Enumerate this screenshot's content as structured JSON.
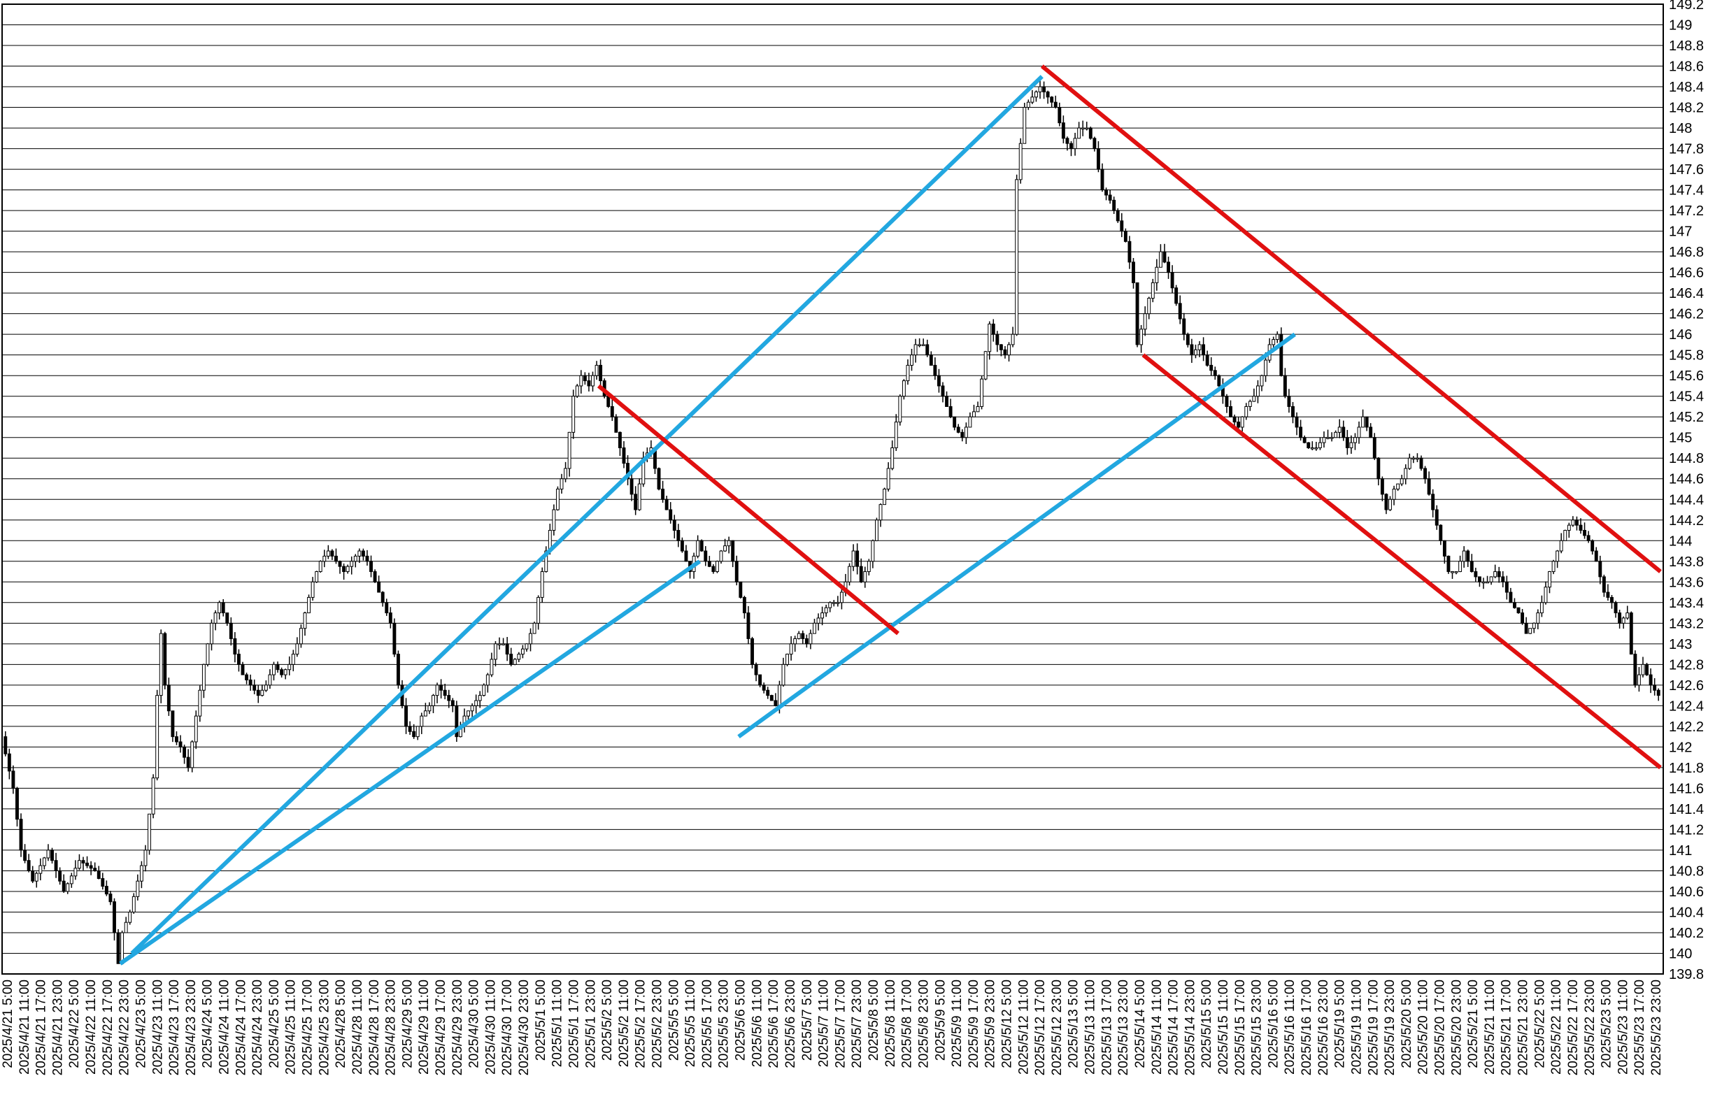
{
  "chart_data": {
    "type": "candlestick",
    "title": "",
    "xlabel": "",
    "ylabel": "",
    "ylim": [
      139.8,
      149.2
    ],
    "y_ticks": [
      139.8,
      140,
      140.2,
      140.4,
      140.6,
      140.8,
      141,
      141.2,
      141.4,
      141.6,
      141.8,
      142,
      142.2,
      142.4,
      142.6,
      142.8,
      143,
      143.2,
      143.4,
      143.6,
      143.8,
      144,
      144.2,
      144.4,
      144.6,
      144.8,
      145,
      145.2,
      145.4,
      145.6,
      145.8,
      146,
      146.2,
      146.4,
      146.6,
      146.8,
      147,
      147.2,
      147.4,
      147.6,
      147.8,
      148,
      148.2,
      148.4,
      148.6,
      148.8,
      149,
      149.2
    ],
    "y_tick_labels": [
      "139.8",
      "140",
      "140.2",
      "140.4",
      "140.6",
      "140.8",
      "141",
      "141.2",
      "141.4",
      "141.6",
      "141.8",
      "142",
      "142.2",
      "142.4",
      "142.6",
      "142.8",
      "143",
      "143.2",
      "143.4",
      "143.6",
      "143.8",
      "144",
      "144.2",
      "144.4",
      "144.6",
      "144.8",
      "145",
      "145.2",
      "145.4",
      "145.6",
      "145.8",
      "146",
      "146.2",
      "146.4",
      "146.6",
      "146.8",
      "147",
      "147.2",
      "147.4",
      "147.6",
      "147.8",
      "148",
      "148.2",
      "148.4",
      "148.6",
      "148.8",
      "149",
      "149.2"
    ],
    "x_tick_labels": [
      "2025/4/21 5:00",
      "2025/4/21 11:00",
      "2025/4/21 17:00",
      "2025/4/21 23:00",
      "2025/4/22 5:00",
      "2025/4/22 11:00",
      "2025/4/22 17:00",
      "2025/4/22 23:00",
      "2025/4/23 5:00",
      "2025/4/23 11:00",
      "2025/4/23 17:00",
      "2025/4/23 23:00",
      "2025/4/24 5:00",
      "2025/4/24 11:00",
      "2025/4/24 17:00",
      "2025/4/24 23:00",
      "2025/4/25 5:00",
      "2025/4/25 11:00",
      "2025/4/25 17:00",
      "2025/4/25 23:00",
      "2025/4/28 5:00",
      "2025/4/28 11:00",
      "2025/4/28 17:00",
      "2025/4/28 23:00",
      "2025/4/29 5:00",
      "2025/4/29 11:00",
      "2025/4/29 17:00",
      "2025/4/29 23:00",
      "2025/4/30 5:00",
      "2025/4/30 11:00",
      "2025/4/30 17:00",
      "2025/4/30 23:00",
      "2025/5/1 5:00",
      "2025/5/1 11:00",
      "2025/5/1 17:00",
      "2025/5/1 23:00",
      "2025/5/2 5:00",
      "2025/5/2 11:00",
      "2025/5/2 17:00",
      "2025/5/2 23:00",
      "2025/5/5 5:00",
      "2025/5/5 11:00",
      "2025/5/5 17:00",
      "2025/5/5 23:00",
      "2025/5/6 5:00",
      "2025/5/6 11:00",
      "2025/5/6 17:00",
      "2025/5/6 23:00",
      "2025/5/7 5:00",
      "2025/5/7 11:00",
      "2025/5/7 17:00",
      "2025/5/7 23:00",
      "2025/5/8 5:00",
      "2025/5/8 11:00",
      "2025/5/8 17:00",
      "2025/5/8 23:00",
      "2025/5/9 5:00",
      "2025/5/9 11:00",
      "2025/5/9 17:00",
      "2025/5/9 23:00",
      "2025/5/12 5:00",
      "2025/5/12 11:00",
      "2025/5/12 17:00",
      "2025/5/12 23:00",
      "2025/5/13 5:00",
      "2025/5/13 11:00",
      "2025/5/13 17:00",
      "2025/5/13 23:00",
      "2025/5/14 5:00",
      "2025/5/14 11:00",
      "2025/5/14 17:00",
      "2025/5/14 23:00",
      "2025/5/15 5:00",
      "2025/5/15 11:00",
      "2025/5/15 17:00",
      "2025/5/15 23:00",
      "2025/5/16 5:00",
      "2025/5/16 11:00",
      "2025/5/16 17:00",
      "2025/5/16 23:00",
      "2025/5/19 5:00",
      "2025/5/19 11:00",
      "2025/5/19 17:00",
      "2025/5/19 23:00",
      "2025/5/20 5:00",
      "2025/5/20 11:00",
      "2025/5/20 17:00",
      "2025/5/20 23:00",
      "2025/5/21 5:00",
      "2025/5/21 11:00",
      "2025/5/21 17:00",
      "2025/5/21 23:00",
      "2025/5/22 5:00",
      "2025/5/22 11:00",
      "2025/5/22 17:00",
      "2025/5/22 23:00",
      "2025/5/23 5:00",
      "2025/5/23 11:00",
      "2025/5/23 17:00",
      "2025/5/23 23:00"
    ],
    "price_path": [
      [
        0,
        142.1
      ],
      [
        3,
        141.6
      ],
      [
        5,
        141.0
      ],
      [
        8,
        140.7
      ],
      [
        12,
        141.0
      ],
      [
        16,
        140.6
      ],
      [
        20,
        140.9
      ],
      [
        24,
        140.8
      ],
      [
        28,
        140.5
      ],
      [
        30,
        139.9
      ],
      [
        31,
        140.2
      ],
      [
        33,
        140.4
      ],
      [
        35,
        140.7
      ],
      [
        37,
        141.0
      ],
      [
        39,
        141.7
      ],
      [
        40,
        142.5
      ],
      [
        41,
        143.1
      ],
      [
        42,
        142.6
      ],
      [
        44,
        142.1
      ],
      [
        46,
        142.0
      ],
      [
        48,
        141.8
      ],
      [
        50,
        142.3
      ],
      [
        52,
        142.8
      ],
      [
        54,
        143.2
      ],
      [
        56,
        143.4
      ],
      [
        58,
        143.2
      ],
      [
        60,
        142.9
      ],
      [
        62,
        142.7
      ],
      [
        64,
        142.6
      ],
      [
        66,
        142.5
      ],
      [
        68,
        142.6
      ],
      [
        70,
        142.8
      ],
      [
        72,
        142.7
      ],
      [
        74,
        142.8
      ],
      [
        76,
        143.0
      ],
      [
        78,
        143.3
      ],
      [
        80,
        143.6
      ],
      [
        82,
        143.8
      ],
      [
        84,
        143.9
      ],
      [
        86,
        143.8
      ],
      [
        88,
        143.7
      ],
      [
        90,
        143.8
      ],
      [
        92,
        143.9
      ],
      [
        94,
        143.8
      ],
      [
        96,
        143.6
      ],
      [
        98,
        143.4
      ],
      [
        100,
        143.2
      ],
      [
        101,
        142.9
      ],
      [
        102,
        142.6
      ],
      [
        104,
        142.2
      ],
      [
        106,
        142.1
      ],
      [
        108,
        142.3
      ],
      [
        110,
        142.4
      ],
      [
        112,
        142.6
      ],
      [
        114,
        142.5
      ],
      [
        116,
        142.4
      ],
      [
        117,
        142.1
      ],
      [
        119,
        142.3
      ],
      [
        121,
        142.4
      ],
      [
        123,
        142.5
      ],
      [
        125,
        142.7
      ],
      [
        127,
        143.0
      ],
      [
        129,
        143.0
      ],
      [
        131,
        142.8
      ],
      [
        133,
        142.9
      ],
      [
        135,
        143.0
      ],
      [
        137,
        143.2
      ],
      [
        139,
        143.7
      ],
      [
        141,
        144.1
      ],
      [
        143,
        144.5
      ],
      [
        145,
        144.7
      ],
      [
        147,
        145.4
      ],
      [
        149,
        145.6
      ],
      [
        151,
        145.5
      ],
      [
        153,
        145.7
      ],
      [
        155,
        145.4
      ],
      [
        157,
        145.2
      ],
      [
        159,
        144.9
      ],
      [
        161,
        144.6
      ],
      [
        163,
        144.3
      ],
      [
        165,
        144.8
      ],
      [
        167,
        144.9
      ],
      [
        169,
        144.5
      ],
      [
        171,
        144.3
      ],
      [
        173,
        144.1
      ],
      [
        175,
        143.9
      ],
      [
        177,
        143.7
      ],
      [
        179,
        144.0
      ],
      [
        181,
        143.8
      ],
      [
        183,
        143.7
      ],
      [
        185,
        143.9
      ],
      [
        187,
        144.0
      ],
      [
        189,
        143.6
      ],
      [
        191,
        143.3
      ],
      [
        193,
        142.8
      ],
      [
        195,
        142.6
      ],
      [
        197,
        142.5
      ],
      [
        199,
        142.4
      ],
      [
        201,
        142.8
      ],
      [
        203,
        143.0
      ],
      [
        205,
        143.1
      ],
      [
        207,
        143.0
      ],
      [
        209,
        143.2
      ],
      [
        211,
        143.3
      ],
      [
        213,
        143.4
      ],
      [
        215,
        143.4
      ],
      [
        217,
        143.6
      ],
      [
        219,
        143.9
      ],
      [
        221,
        143.6
      ],
      [
        223,
        143.8
      ],
      [
        225,
        144.2
      ],
      [
        227,
        144.5
      ],
      [
        229,
        144.9
      ],
      [
        231,
        145.4
      ],
      [
        233,
        145.7
      ],
      [
        235,
        145.9
      ],
      [
        237,
        145.9
      ],
      [
        239,
        145.7
      ],
      [
        241,
        145.5
      ],
      [
        243,
        145.3
      ],
      [
        245,
        145.1
      ],
      [
        247,
        145.0
      ],
      [
        249,
        145.2
      ],
      [
        251,
        145.3
      ],
      [
        254,
        146.1
      ],
      [
        256,
        145.9
      ],
      [
        258,
        145.8
      ],
      [
        260,
        146.0
      ],
      [
        261,
        147.5
      ],
      [
        263,
        148.2
      ],
      [
        265,
        148.3
      ],
      [
        267,
        148.4
      ],
      [
        269,
        148.3
      ],
      [
        271,
        148.2
      ],
      [
        273,
        147.9
      ],
      [
        275,
        147.8
      ],
      [
        277,
        148.0
      ],
      [
        279,
        148.0
      ],
      [
        281,
        147.8
      ],
      [
        283,
        147.4
      ],
      [
        285,
        147.3
      ],
      [
        287,
        147.1
      ],
      [
        289,
        146.9
      ],
      [
        291,
        146.5
      ],
      [
        292,
        145.9
      ],
      [
        294,
        146.2
      ],
      [
        296,
        146.5
      ],
      [
        298,
        146.8
      ],
      [
        300,
        146.6
      ],
      [
        302,
        146.3
      ],
      [
        304,
        146.0
      ],
      [
        306,
        145.8
      ],
      [
        308,
        145.9
      ],
      [
        310,
        145.7
      ],
      [
        312,
        145.6
      ],
      [
        314,
        145.4
      ],
      [
        316,
        145.2
      ],
      [
        318,
        145.1
      ],
      [
        320,
        145.3
      ],
      [
        322,
        145.4
      ],
      [
        324,
        145.6
      ],
      [
        326,
        145.9
      ],
      [
        328,
        146.0
      ],
      [
        329,
        145.6
      ],
      [
        330,
        145.4
      ],
      [
        332,
        145.2
      ],
      [
        334,
        145.0
      ],
      [
        336,
        144.9
      ],
      [
        338,
        144.9
      ],
      [
        340,
        145.0
      ],
      [
        342,
        145.0
      ],
      [
        344,
        145.1
      ],
      [
        346,
        144.9
      ],
      [
        348,
        145.0
      ],
      [
        350,
        145.2
      ],
      [
        352,
        145.0
      ],
      [
        354,
        144.6
      ],
      [
        356,
        144.3
      ],
      [
        358,
        144.5
      ],
      [
        360,
        144.6
      ],
      [
        362,
        144.8
      ],
      [
        364,
        144.8
      ],
      [
        366,
        144.6
      ],
      [
        368,
        144.3
      ],
      [
        370,
        144.0
      ],
      [
        372,
        143.7
      ],
      [
        374,
        143.7
      ],
      [
        376,
        143.9
      ],
      [
        378,
        143.7
      ],
      [
        380,
        143.6
      ],
      [
        382,
        143.6
      ],
      [
        384,
        143.7
      ],
      [
        386,
        143.6
      ],
      [
        388,
        143.4
      ],
      [
        390,
        143.3
      ],
      [
        392,
        143.1
      ],
      [
        394,
        143.2
      ],
      [
        396,
        143.4
      ],
      [
        398,
        143.7
      ],
      [
        400,
        143.9
      ],
      [
        402,
        144.1
      ],
      [
        404,
        144.2
      ],
      [
        406,
        144.1
      ],
      [
        408,
        144.0
      ],
      [
        410,
        143.8
      ],
      [
        412,
        143.5
      ],
      [
        414,
        143.4
      ],
      [
        416,
        143.2
      ],
      [
        418,
        143.3
      ],
      [
        419,
        142.9
      ],
      [
        420,
        142.6
      ],
      [
        422,
        142.8
      ],
      [
        424,
        142.6
      ],
      [
        426,
        142.5
      ]
    ],
    "trendlines": [
      {
        "color": "#22a7e0",
        "from": [
          33,
          140.0
        ],
        "to": [
          267,
          148.5
        ]
      },
      {
        "color": "#22a7e0",
        "from": [
          30,
          139.9
        ],
        "to": [
          179,
          143.8
        ]
      },
      {
        "color": "#22a7e0",
        "from": [
          189,
          142.1
        ],
        "to": [
          332,
          146.0
        ]
      },
      {
        "color": "#e01010",
        "from": [
          267,
          148.6
        ],
        "to": [
          426,
          143.7
        ]
      },
      {
        "color": "#e01010",
        "from": [
          293,
          145.8
        ],
        "to": [
          426,
          141.8
        ]
      },
      {
        "color": "#e01010",
        "from": [
          153,
          145.5
        ],
        "to": [
          230,
          143.1
        ]
      }
    ],
    "grid": true,
    "legend": "none"
  }
}
